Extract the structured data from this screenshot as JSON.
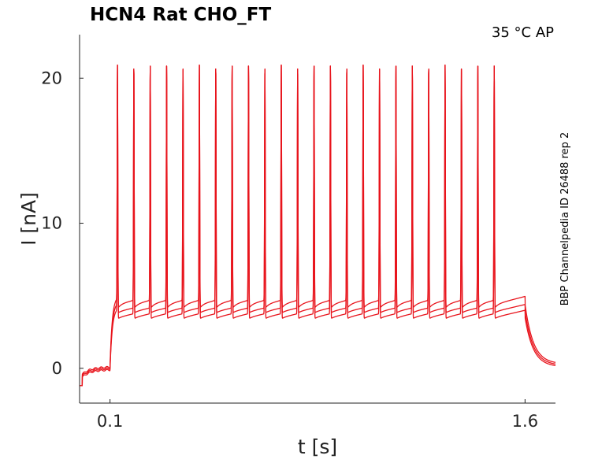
{
  "chart_data": {
    "type": "line",
    "title": "HCN4  Rat  CHO_FT",
    "condition": "35 °C  AP",
    "side_label": "BBP Channelpedia ID 26488 rep 2",
    "xlabel": "t [s]",
    "ylabel": "I [nA]",
    "xlim": [
      -0.01,
      1.71
    ],
    "ylim": [
      -2.4,
      23.0
    ],
    "x_ticks": [
      0.1,
      1.6
    ],
    "x_tick_labels": [
      "0.1",
      "1.6"
    ],
    "y_ticks": [
      0,
      10,
      20
    ],
    "y_tick_labels": [
      "0",
      "10",
      "20"
    ],
    "grid": false,
    "legend": "none",
    "color": "#e8141c",
    "protocol": {
      "step_on": 0.1,
      "step_off": 1.6,
      "first_spike": 0.127,
      "spike_count": 24,
      "spike_period": 0.0592
    },
    "series": [
      {
        "baseline": 0.1,
        "rest": 4.4,
        "plateau": 5.0,
        "trough": 4.1,
        "peak": 20.9,
        "tail": 0.3
      },
      {
        "baseline": 0.0,
        "rest": 3.9,
        "plateau": 4.6,
        "trough": 3.8,
        "peak": 20.9,
        "tail": 0.2
      },
      {
        "baseline": -0.1,
        "rest": 3.5,
        "plateau": 4.2,
        "trough": 3.4,
        "peak": 20.9,
        "tail": 0.1
      }
    ]
  }
}
